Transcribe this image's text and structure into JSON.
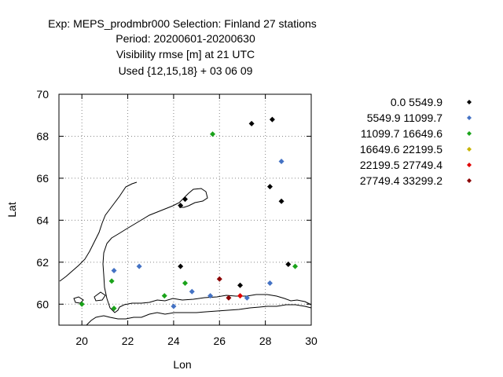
{
  "chart_data": {
    "type": "scatter",
    "title_lines": [
      "Exp: MEPS_prodmbr000   Selection: Finland     27 stations",
      "Period: 20200601-20200630",
      "Visibility rmse [m] at  21 UTC",
      "Used {12,15,18} + 03 06 09"
    ],
    "xlabel": "Lon",
    "ylabel": "Lat",
    "xlim": [
      19,
      30
    ],
    "ylim": [
      59,
      70
    ],
    "xticks": [
      20,
      22,
      24,
      26,
      28,
      30
    ],
    "yticks": [
      60,
      62,
      64,
      66,
      68,
      70
    ],
    "grid": true,
    "legend_position": "right",
    "series": [
      {
        "name": "0.0 5549.9",
        "color": "#000000",
        "points": [
          [
            27.4,
            68.6
          ],
          [
            28.3,
            68.8
          ],
          [
            24.5,
            65.0
          ],
          [
            24.3,
            64.7
          ],
          [
            28.2,
            65.6
          ],
          [
            28.7,
            64.9
          ],
          [
            24.3,
            61.8
          ],
          [
            29.0,
            61.9
          ],
          [
            26.9,
            60.9
          ]
        ]
      },
      {
        "name": "5549.9 11099.7",
        "color": "#4472c4",
        "points": [
          [
            28.7,
            66.8
          ],
          [
            21.4,
            61.6
          ],
          [
            22.5,
            61.8
          ],
          [
            24.8,
            60.6
          ],
          [
            25.6,
            60.4
          ],
          [
            24.0,
            59.9
          ],
          [
            27.2,
            60.3
          ],
          [
            28.2,
            61.0
          ]
        ]
      },
      {
        "name": "11099.7 16649.6",
        "color": "#1aa31a",
        "points": [
          [
            25.7,
            68.1
          ],
          [
            21.3,
            61.1
          ],
          [
            21.4,
            59.8
          ],
          [
            20.0,
            60.0
          ],
          [
            23.6,
            60.4
          ],
          [
            24.5,
            61.0
          ],
          [
            29.3,
            61.8
          ]
        ]
      },
      {
        "name": "16649.6 22199.5",
        "color": "#c8b400",
        "points": []
      },
      {
        "name": "22199.5 27749.4",
        "color": "#e00000",
        "points": [
          [
            26.9,
            60.4
          ]
        ]
      },
      {
        "name": "27749.4 33299.2",
        "color": "#8b0000",
        "points": [
          [
            26.0,
            61.2
          ],
          [
            26.4,
            60.3
          ]
        ]
      }
    ]
  }
}
